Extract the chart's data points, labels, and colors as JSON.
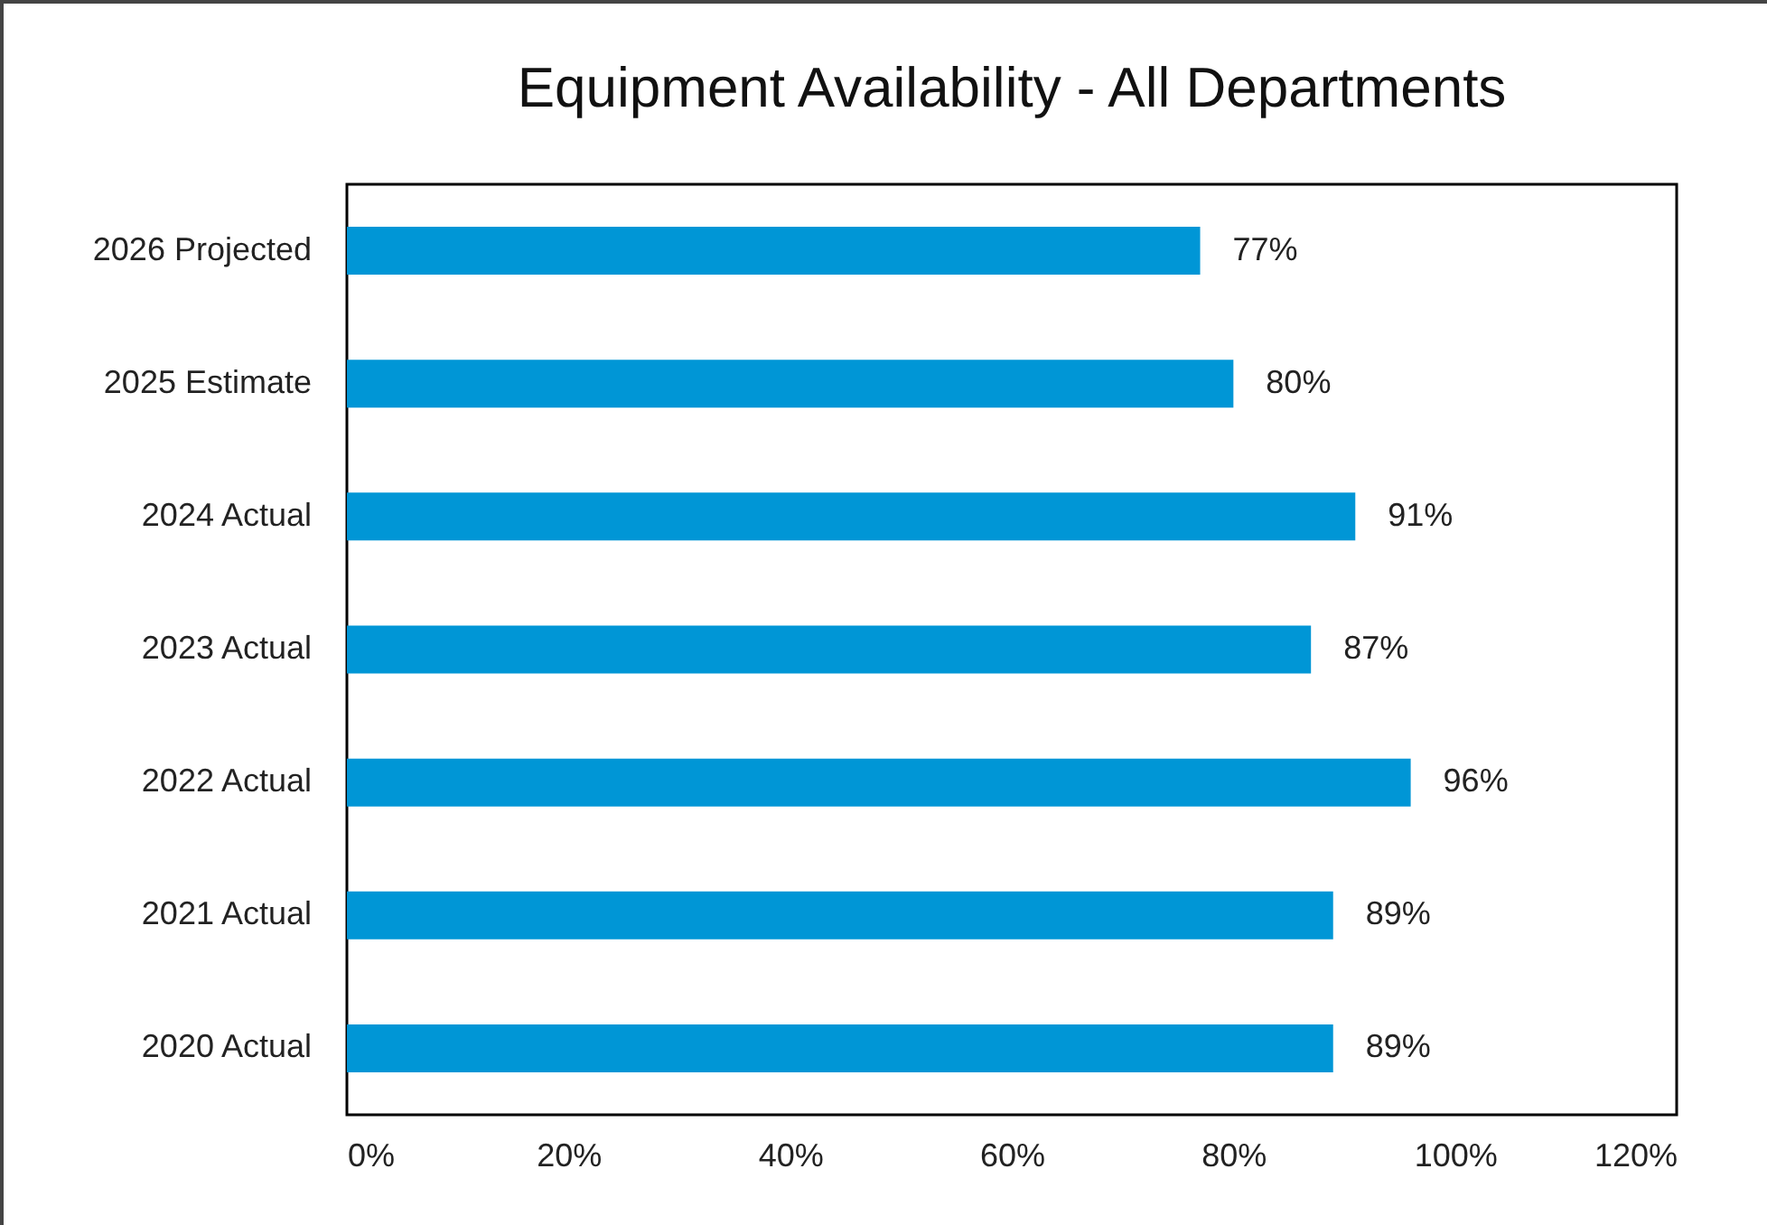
{
  "chart_data": {
    "type": "bar",
    "orientation": "horizontal",
    "title": "Equipment Availability - All Departments",
    "categories": [
      "2026 Projected",
      "2025 Estimate",
      "2024 Actual",
      "2023 Actual",
      "2022 Actual",
      "2021 Actual",
      "2020 Actual"
    ],
    "values": [
      77,
      80,
      91,
      87,
      96,
      89,
      89
    ],
    "value_labels": [
      "77%",
      "80%",
      "91%",
      "87%",
      "96%",
      "89%",
      "89%"
    ],
    "color": "#0096d6",
    "xlim": [
      0,
      120
    ],
    "xticks": [
      {
        "value": 0,
        "label": "0%"
      },
      {
        "value": 20,
        "label": "20%"
      },
      {
        "value": 40,
        "label": "40%"
      },
      {
        "value": 60,
        "label": "60%"
      },
      {
        "value": 80,
        "label": "80%"
      },
      {
        "value": 100,
        "label": "100%"
      },
      {
        "value": 120,
        "label": "120%"
      }
    ]
  }
}
